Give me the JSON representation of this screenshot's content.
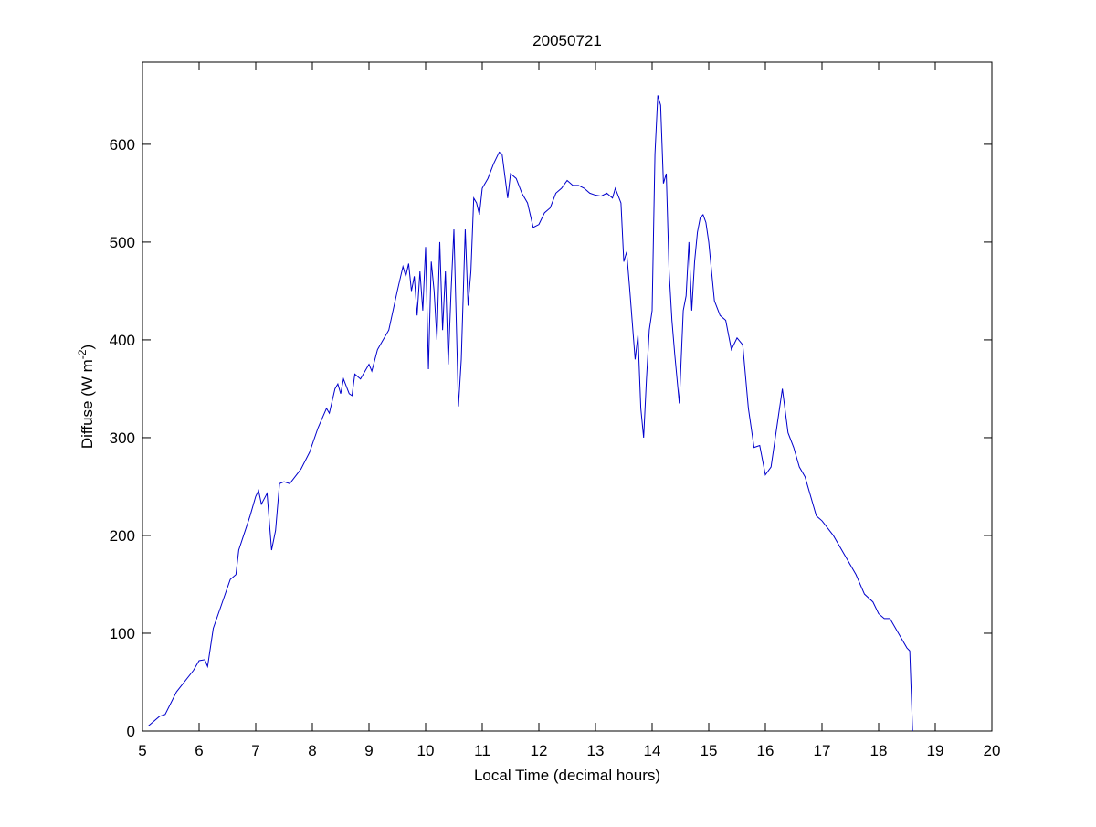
{
  "chart_data": {
    "type": "line",
    "title": "20050721",
    "xlabel": "Local Time (decimal hours)",
    "ylabel": [
      "Diffuse (W m",
      "-2",
      ")"
    ],
    "xlim": [
      5,
      20
    ],
    "ylim": [
      0,
      684
    ],
    "xticks": [
      5,
      6,
      7,
      8,
      9,
      10,
      11,
      12,
      13,
      14,
      15,
      16,
      17,
      18,
      19,
      20
    ],
    "yticks": [
      0,
      100,
      200,
      300,
      400,
      500,
      600
    ],
    "grid": false,
    "x": [
      5.1,
      5.3,
      5.4,
      5.6,
      5.9,
      6.0,
      6.1,
      6.15,
      6.25,
      6.4,
      6.55,
      6.65,
      6.7,
      6.9,
      7.0,
      7.05,
      7.1,
      7.2,
      7.28,
      7.35,
      7.42,
      7.5,
      7.6,
      7.8,
      7.95,
      8.1,
      8.25,
      8.3,
      8.4,
      8.45,
      8.5,
      8.55,
      8.65,
      8.7,
      8.75,
      8.85,
      9.0,
      9.05,
      9.15,
      9.25,
      9.35,
      9.5,
      9.6,
      9.65,
      9.7,
      9.75,
      9.8,
      9.85,
      9.9,
      9.95,
      10.0,
      10.05,
      10.1,
      10.15,
      10.2,
      10.25,
      10.3,
      10.35,
      10.4,
      10.45,
      10.5,
      10.58,
      10.63,
      10.7,
      10.75,
      10.8,
      10.85,
      10.9,
      10.95,
      11.0,
      11.1,
      11.2,
      11.3,
      11.35,
      11.45,
      11.5,
      11.6,
      11.7,
      11.8,
      11.9,
      12.0,
      12.1,
      12.2,
      12.3,
      12.4,
      12.5,
      12.6,
      12.7,
      12.8,
      12.9,
      13.0,
      13.1,
      13.2,
      13.3,
      13.35,
      13.45,
      13.5,
      13.55,
      13.6,
      13.7,
      13.75,
      13.8,
      13.85,
      13.9,
      13.95,
      14.0,
      14.05,
      14.1,
      14.15,
      14.2,
      14.25,
      14.3,
      14.35,
      14.4,
      14.48,
      14.55,
      14.6,
      14.65,
      14.7,
      14.75,
      14.8,
      14.85,
      14.9,
      14.95,
      15.0,
      15.1,
      15.2,
      15.3,
      15.4,
      15.5,
      15.6,
      15.7,
      15.8,
      15.9,
      16.0,
      16.1,
      16.2,
      16.3,
      16.4,
      16.5,
      16.6,
      16.7,
      16.8,
      16.9,
      17.0,
      17.2,
      17.4,
      17.6,
      17.75,
      17.9,
      18.0,
      18.1,
      18.2,
      18.4,
      18.5,
      18.55,
      18.6
    ],
    "series": [
      {
        "name": "Diffuse",
        "color": "#0000cc",
        "values": [
          5,
          15,
          17,
          40,
          62,
          72,
          73,
          66,
          105,
          130,
          155,
          160,
          185,
          220,
          240,
          246,
          232,
          243,
          185,
          205,
          253,
          255,
          253,
          268,
          285,
          310,
          330,
          325,
          350,
          355,
          345,
          360,
          345,
          343,
          365,
          360,
          375,
          368,
          390,
          400,
          410,
          450,
          475,
          465,
          478,
          450,
          465,
          425,
          470,
          430,
          495,
          370,
          480,
          450,
          400,
          500,
          410,
          470,
          375,
          450,
          513,
          332,
          380,
          513,
          435,
          470,
          545,
          540,
          528,
          555,
          565,
          580,
          592,
          590,
          545,
          570,
          565,
          550,
          540,
          515,
          518,
          530,
          535,
          550,
          555,
          563,
          558,
          558,
          555,
          550,
          548,
          547,
          550,
          545,
          555,
          540,
          480,
          490,
          455,
          380,
          405,
          330,
          300,
          360,
          410,
          430,
          590,
          650,
          640,
          560,
          570,
          470,
          420,
          385,
          335,
          430,
          445,
          500,
          430,
          480,
          510,
          525,
          528,
          520,
          500,
          440,
          425,
          420,
          390,
          402,
          395,
          330,
          290,
          292,
          262,
          270,
          310,
          350,
          305,
          290,
          270,
          260,
          240,
          220,
          215,
          200,
          180,
          160,
          140,
          132,
          120,
          115,
          115,
          95,
          85,
          82,
          0
        ]
      }
    ]
  }
}
